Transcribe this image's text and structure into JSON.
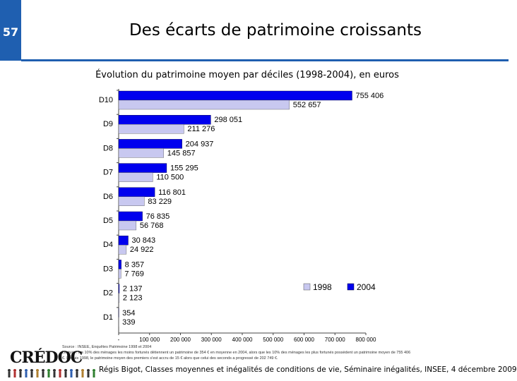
{
  "slide": {
    "number": "57",
    "title": "Des écarts de patrimoine croissants",
    "accent_color": "#1f5fb0"
  },
  "chart_data": {
    "type": "bar",
    "orientation": "horizontal",
    "title": "Évolution du patrimoine moyen par déciles (1998-2004), en euros",
    "categories": [
      "D10",
      "D9",
      "D8",
      "D7",
      "D6",
      "D5",
      "D4",
      "D3",
      "D2",
      "D1"
    ],
    "series": [
      {
        "name": "2004",
        "color": "#0000ee",
        "values": [
          755406,
          298051,
          204937,
          155295,
          116801,
          76835,
          30843,
          8357,
          2137,
          354
        ],
        "labels": [
          "755 406",
          "298 051",
          "204 937",
          "155 295",
          "116 801",
          "76 835",
          "30 843",
          "8 357",
          "2 137",
          "354"
        ]
      },
      {
        "name": "1998",
        "color": "#c8c8f0",
        "values": [
          552657,
          211276,
          145857,
          110500,
          83229,
          56768,
          24922,
          7769,
          2123,
          339
        ],
        "labels": [
          "552 657",
          "211 276",
          "145 857",
          "110 500",
          "83 229",
          "56 768",
          "24 922",
          "7 769",
          "2 123",
          "339"
        ]
      }
    ],
    "xlim": [
      0,
      800000
    ],
    "xticks": [
      0,
      100000,
      200000,
      300000,
      400000,
      500000,
      600000,
      700000,
      800000
    ],
    "xtick_labels": [
      "-",
      "100 000",
      "200 000",
      "300 000",
      "400 000",
      "500 000",
      "600 000",
      "700 000",
      "800 000"
    ],
    "legend": [
      "1998",
      "2004"
    ],
    "legend_position": "lower-right"
  },
  "source": {
    "line1": "Source : INSEE, Enquêtes Patrimoine 1998 et 2004",
    "line2": "Lecture : les 10% des ménages les moins fortunés détiennent un patrimoine de 354 € en moyenne en 2004, alors que les 10% des ménages les plus fortunés possèdent un patrimoine moyen de 755 406",
    "line3": "€. Depuis 1998, le patrimoine moyen des premiers s'est accru de 15 € alors que celui des seconds a progressé de 202 749 €."
  },
  "footer": {
    "text": "Régis Bigot, Classes moyennes et inégalités de conditions de vie, Séminaire inégalités, INSEE, 4 décembre 2009",
    "logo": "CRÉDOC"
  }
}
